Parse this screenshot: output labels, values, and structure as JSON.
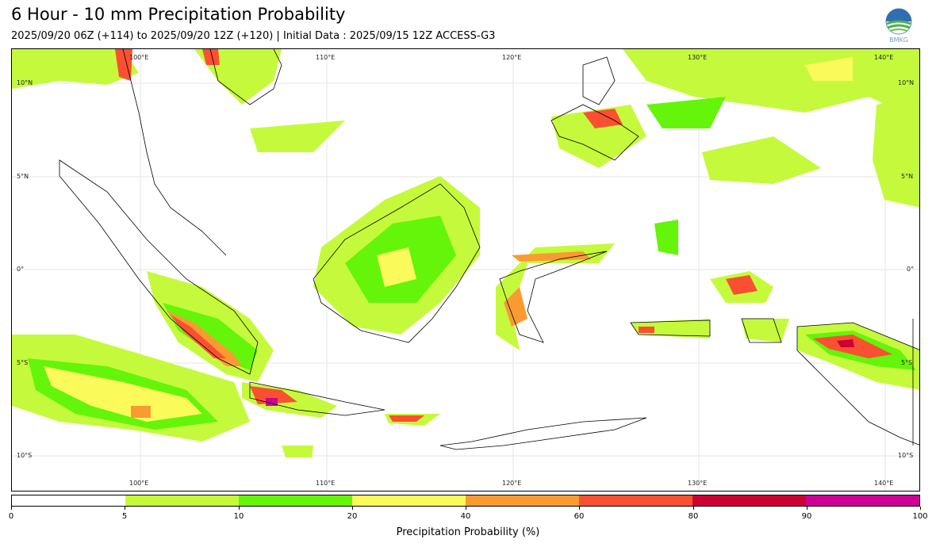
{
  "title": "6 Hour - 10 mm Precipitation Probability",
  "subtitle": "2025/09/20 06Z (+114) to 2025/09/20 12Z (+120) | Initial Data : 2025/09/15 12Z ACCESS-G3",
  "logo_text": "BMKG",
  "map": {
    "lon_labels": [
      "100°E",
      "110°E",
      "120°E",
      "130°E",
      "140°E"
    ],
    "lat_labels": [
      "10°N",
      "5°N",
      "0°",
      "5°S",
      "10°S"
    ]
  },
  "colorbar": {
    "ticks": [
      "0",
      "5",
      "10",
      "20",
      "40",
      "60",
      "80",
      "90",
      "100"
    ],
    "colors": [
      "#ffffff",
      "#c5fa3c",
      "#64f50a",
      "#fafa5a",
      "#fa9b32",
      "#fa5032",
      "#cd0032",
      "#cd0096"
    ],
    "label": "Precipitation Probability (%)"
  }
}
